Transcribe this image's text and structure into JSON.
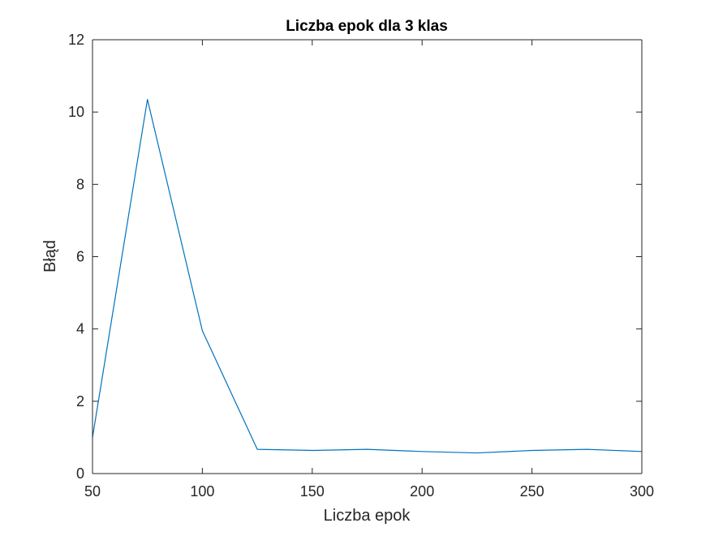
{
  "chart_data": {
    "type": "line",
    "title": "Liczba epok dla 3 klas",
    "xlabel": "Liczba epok",
    "ylabel": "Błąd",
    "xlim": [
      50,
      300
    ],
    "ylim": [
      0,
      12
    ],
    "xticks": [
      50,
      100,
      150,
      200,
      250,
      300
    ],
    "yticks": [
      0,
      2,
      4,
      6,
      8,
      10,
      12
    ],
    "grid": false,
    "line_color": "#0072BD",
    "series": [
      {
        "x": [
          50,
          75,
          100,
          125,
          150,
          175,
          200,
          225,
          250,
          275,
          300
        ],
        "values": [
          1.0,
          10.35,
          3.95,
          0.67,
          0.64,
          0.67,
          0.61,
          0.57,
          0.64,
          0.67,
          0.61
        ]
      }
    ]
  }
}
